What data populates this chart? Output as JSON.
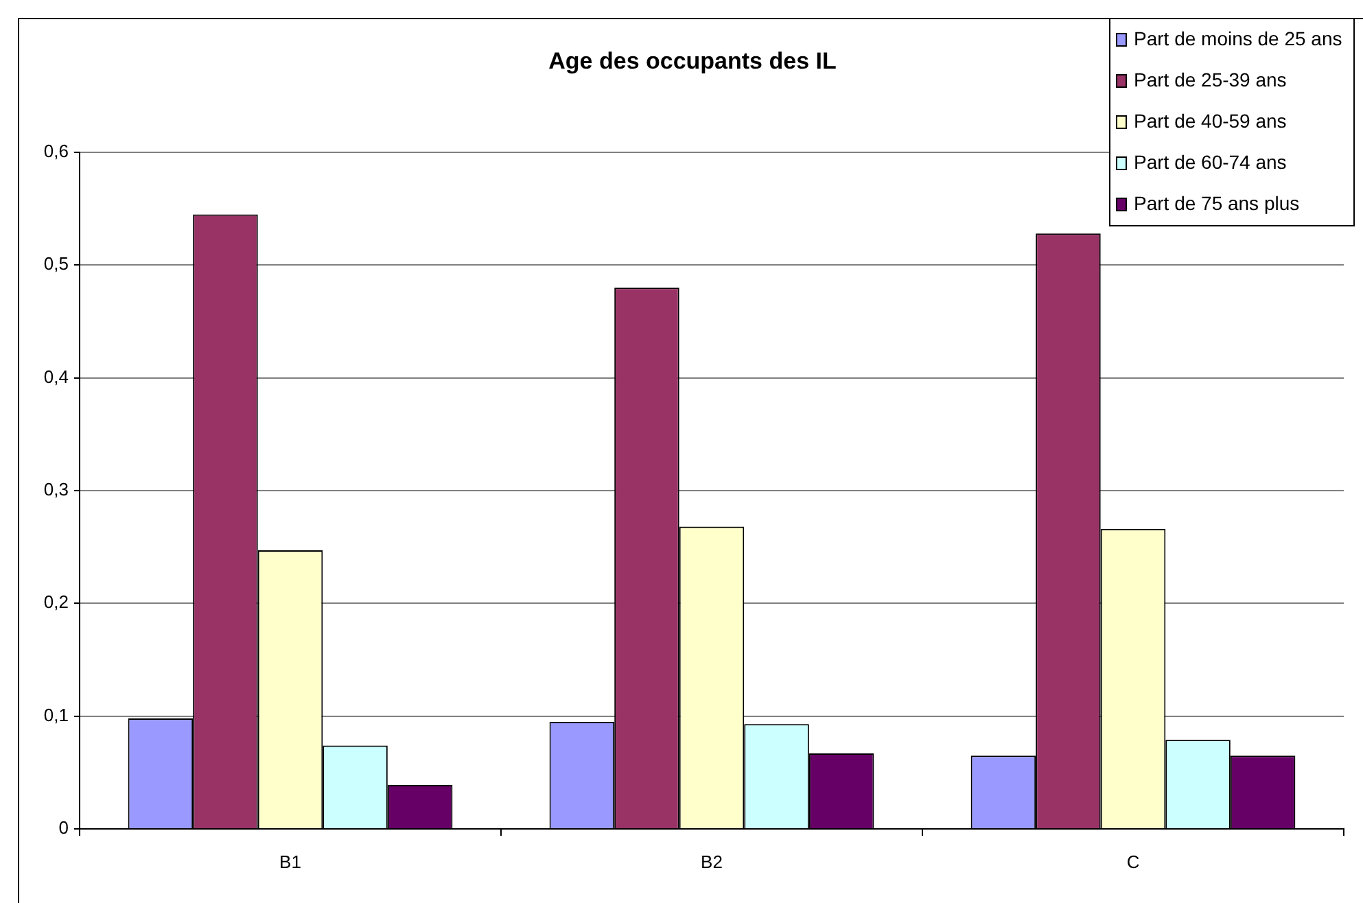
{
  "chart_data": {
    "type": "bar",
    "title": "Age des occupants des IL",
    "categories": [
      "B1",
      "B2",
      "C"
    ],
    "series": [
      {
        "name": "Part de moins de 25 ans",
        "color": "#9999ff",
        "values": [
          0.098,
          0.095,
          0.065
        ]
      },
      {
        "name": "Part de 25-39 ans",
        "color": "#993366",
        "values": [
          0.545,
          0.48,
          0.528
        ]
      },
      {
        "name": "Part de 40-59 ans",
        "color": "#ffffcc",
        "values": [
          0.247,
          0.268,
          0.266
        ]
      },
      {
        "name": "Part de 60-74 ans",
        "color": "#ccffff",
        "values": [
          0.074,
          0.093,
          0.079
        ]
      },
      {
        "name": "Part de 75 ans plus",
        "color": "#660066",
        "values": [
          0.039,
          0.067,
          0.065
        ]
      }
    ],
    "ylim": [
      0,
      0.6
    ],
    "yticks": [
      0,
      {
        "value": 0.1,
        "label": "0,1"
      },
      {
        "value": 0.2,
        "label": "0,2"
      },
      {
        "value": 0.3,
        "label": "0,3"
      },
      {
        "value": 0.4,
        "label": "0,4"
      },
      {
        "value": 0.5,
        "label": "0,5"
      },
      {
        "value": 0.6,
        "label": "0,6"
      }
    ],
    "grid": "y",
    "legend": "top right"
  }
}
